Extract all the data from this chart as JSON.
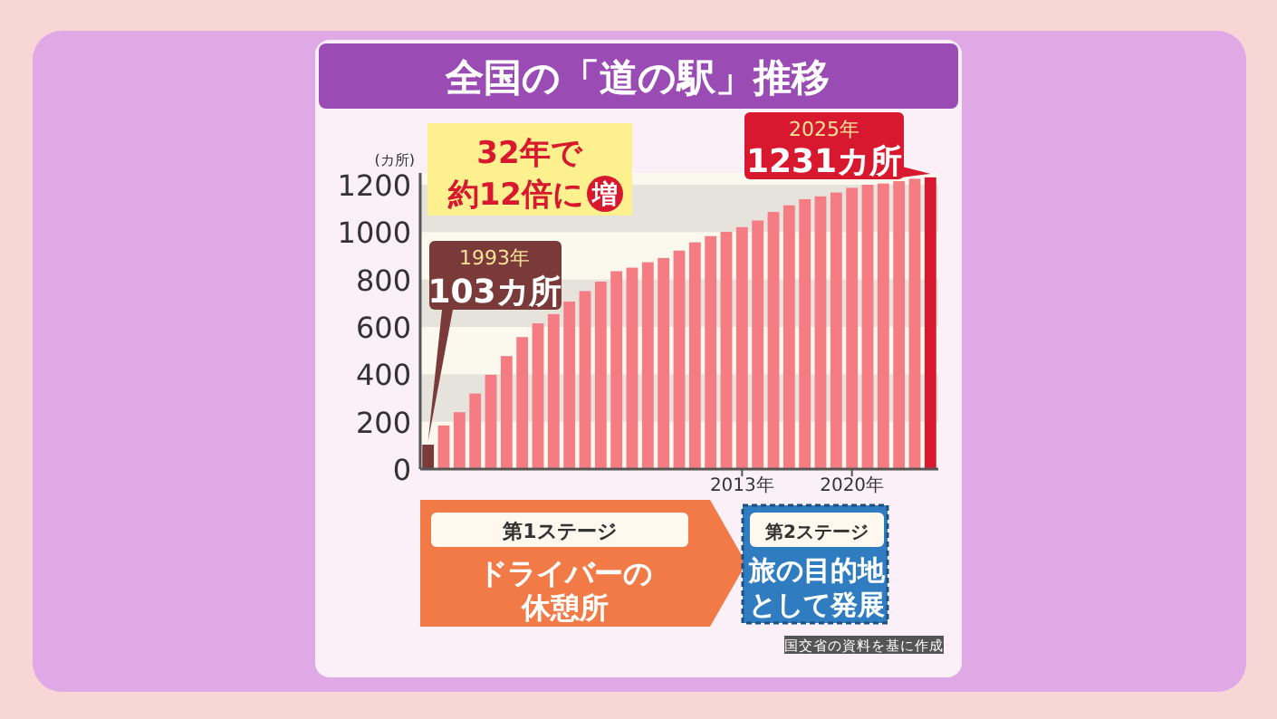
{
  "chart_data": {
    "type": "bar",
    "title": "全国の「道の駅」推移",
    "ylabel": "(カ所)",
    "categories": [
      null,
      null,
      null,
      null,
      null,
      null,
      null,
      null,
      null,
      null,
      null,
      null,
      null,
      null,
      null,
      null,
      null,
      null,
      null,
      null,
      "2013年",
      null,
      null,
      null,
      null,
      null,
      null,
      "2020年",
      null,
      null,
      null,
      null,
      null
    ],
    "values": [
      103,
      184,
      240,
      319,
      398,
      477,
      557,
      615,
      654,
      707,
      751,
      791,
      835,
      850,
      873,
      891,
      922,
      957,
      983,
      1001,
      1021,
      1049,
      1085,
      1113,
      1139,
      1151,
      1167,
      1187,
      1200,
      1205,
      1215,
      1225,
      1231
    ],
    "colors": [
      "#7a3a3a",
      "#f47c82",
      "#f47c82",
      "#f47c82",
      "#f47c82",
      "#f47c82",
      "#f47c82",
      "#f47c82",
      "#f47c82",
      "#f47c82",
      "#f47c82",
      "#f47c82",
      "#f47c82",
      "#f47c82",
      "#f47c82",
      "#f47c82",
      "#f47c82",
      "#f47c82",
      "#f47c82",
      "#f47c82",
      "#f47c82",
      "#f47c82",
      "#f47c82",
      "#f47c82",
      "#f47c82",
      "#f47c82",
      "#f47c82",
      "#f47c82",
      "#f47c82",
      "#f47c82",
      "#f47c82",
      "#f47c82",
      "#d8182e"
    ],
    "ylim": [
      0,
      1250
    ],
    "yticks": [
      0,
      200,
      400,
      600,
      800,
      1000,
      1200
    ],
    "bands": [
      {
        "axis": "y",
        "from": 200,
        "to": 400,
        "color": "#e6e3dc"
      },
      {
        "axis": "y",
        "from": 600,
        "to": 800,
        "color": "#e6e3dc"
      },
      {
        "axis": "y",
        "from": 1000,
        "to": 1200,
        "color": "#e6e3dc"
      }
    ],
    "annotations": [
      "32年で約12倍に増",
      "1993年\n103カ所",
      "2025年\n1231カ所",
      "第1ステージ",
      "ドライバーの休憩所",
      "第2ステージ",
      "旅の目的地として発展",
      "国交省の資料を基に作成"
    ]
  }
}
